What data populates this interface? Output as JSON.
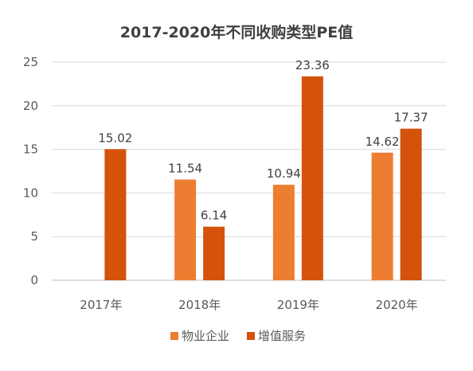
{
  "chart_data": {
    "type": "bar",
    "title": "2017-2020年不同收购类型PE值",
    "categories": [
      "2017年",
      "2018年",
      "2019年",
      "2020年"
    ],
    "series": [
      {
        "name": "物业企业",
        "values": [
          null,
          11.54,
          10.94,
          14.62
        ],
        "color": "#ED7D31"
      },
      {
        "name": "增值服务",
        "values": [
          15.02,
          6.14,
          23.36,
          17.37
        ],
        "color": "#D4520A"
      }
    ],
    "data_labels": [
      [
        "",
        "11.54",
        "10.94",
        "14.62"
      ],
      [
        "15.02",
        "6.14",
        "23.36",
        "17.37"
      ]
    ],
    "yticks": [
      "0",
      "5",
      "10",
      "15",
      "20",
      "25"
    ],
    "ylim": [
      0,
      25
    ],
    "grid": true,
    "legend_position": "bottom"
  }
}
